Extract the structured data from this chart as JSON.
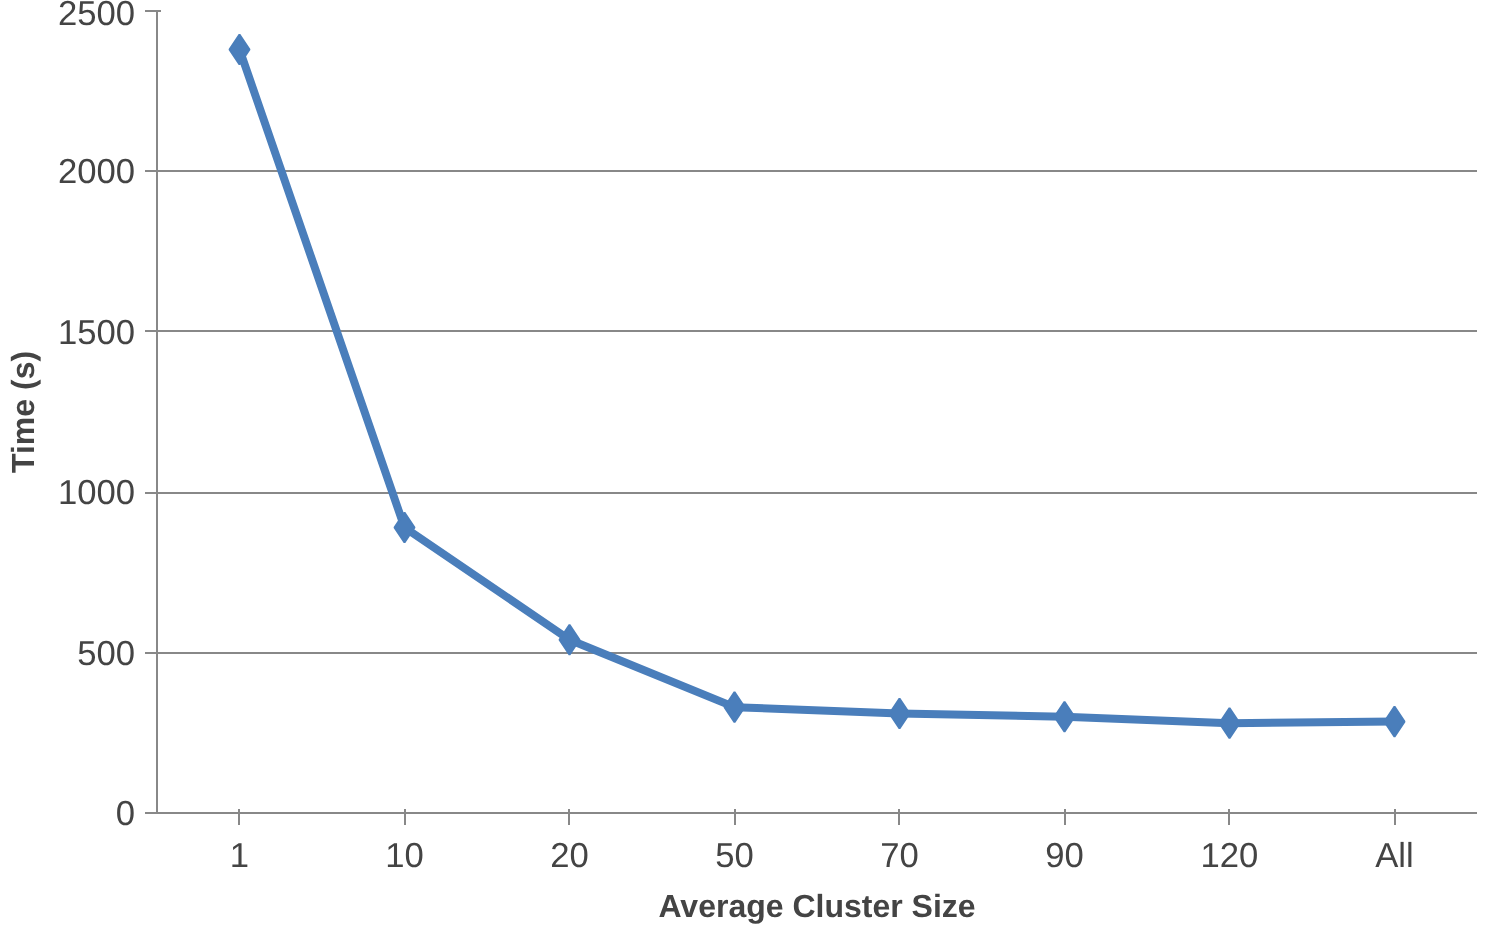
{
  "chart_data": {
    "type": "line",
    "xlabel": "Average Cluster Size",
    "ylabel": "Time (s)",
    "categories": [
      "1",
      "10",
      "20",
      "50",
      "70",
      "90",
      "120",
      "All"
    ],
    "series": [
      {
        "color": "#4a7ebb",
        "values": [
          2380,
          890,
          540,
          330,
          310,
          300,
          280,
          285
        ]
      }
    ],
    "ylim": [
      0,
      2500
    ],
    "yticks": [
      0,
      500,
      1000,
      1500,
      2000,
      2500
    ],
    "grid": "y",
    "marker": "diamond",
    "line_style": "solid"
  }
}
